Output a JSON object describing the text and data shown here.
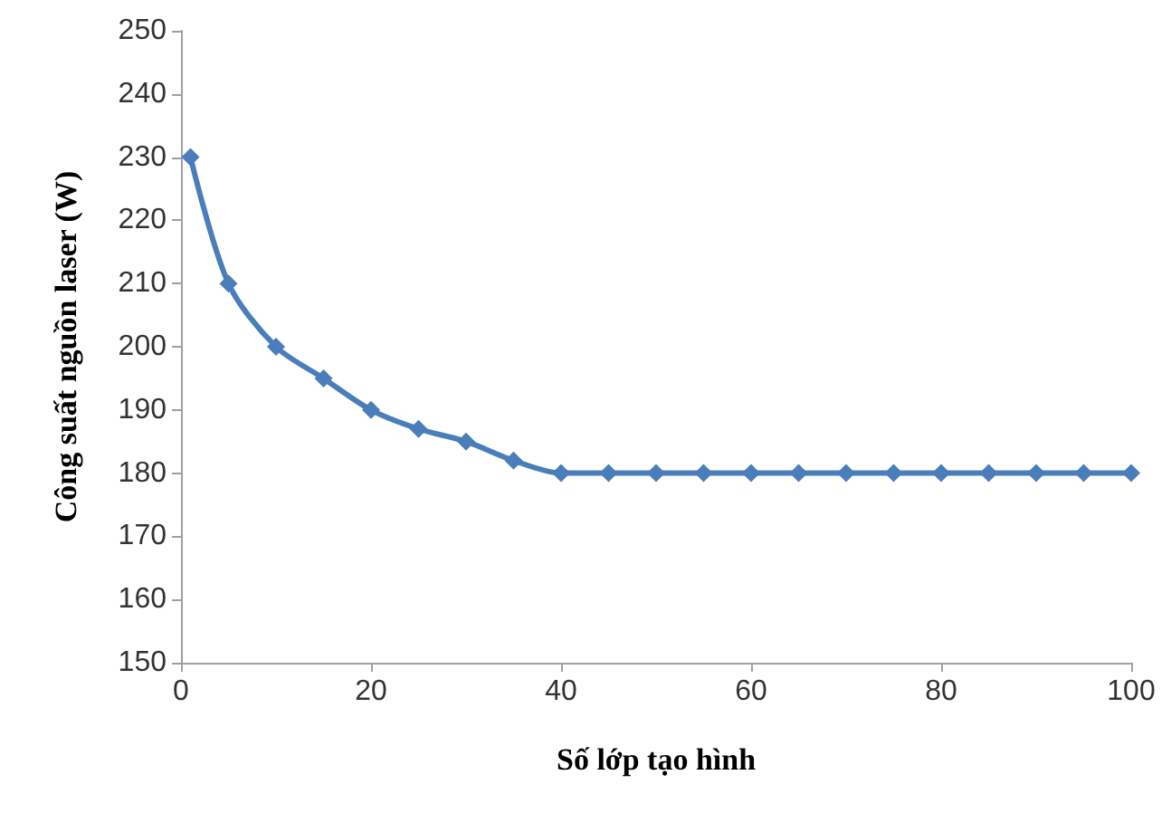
{
  "chart_data": {
    "type": "line",
    "xlabel": "Số lớp tạo hình",
    "ylabel": "Công suất nguồn laser (W)",
    "x": [
      1,
      5,
      10,
      15,
      20,
      25,
      30,
      35,
      40,
      45,
      50,
      55,
      60,
      65,
      70,
      75,
      80,
      85,
      90,
      95,
      100
    ],
    "series": [
      {
        "color": "#4a7ebb",
        "values": [
          230,
          210,
          200,
          195,
          190,
          187,
          185,
          182,
          180,
          180,
          180,
          180,
          180,
          180,
          180,
          180,
          180,
          180,
          180,
          180,
          180
        ]
      }
    ],
    "xlim": [
      0,
      100
    ],
    "xticks": [
      0,
      20,
      40,
      60,
      80,
      100
    ],
    "ylim": [
      150,
      250
    ],
    "yticks": [
      150,
      160,
      170,
      180,
      190,
      200,
      210,
      220,
      230,
      240,
      250
    ],
    "grid": false,
    "marker": "diamond",
    "line_style": "solid"
  }
}
